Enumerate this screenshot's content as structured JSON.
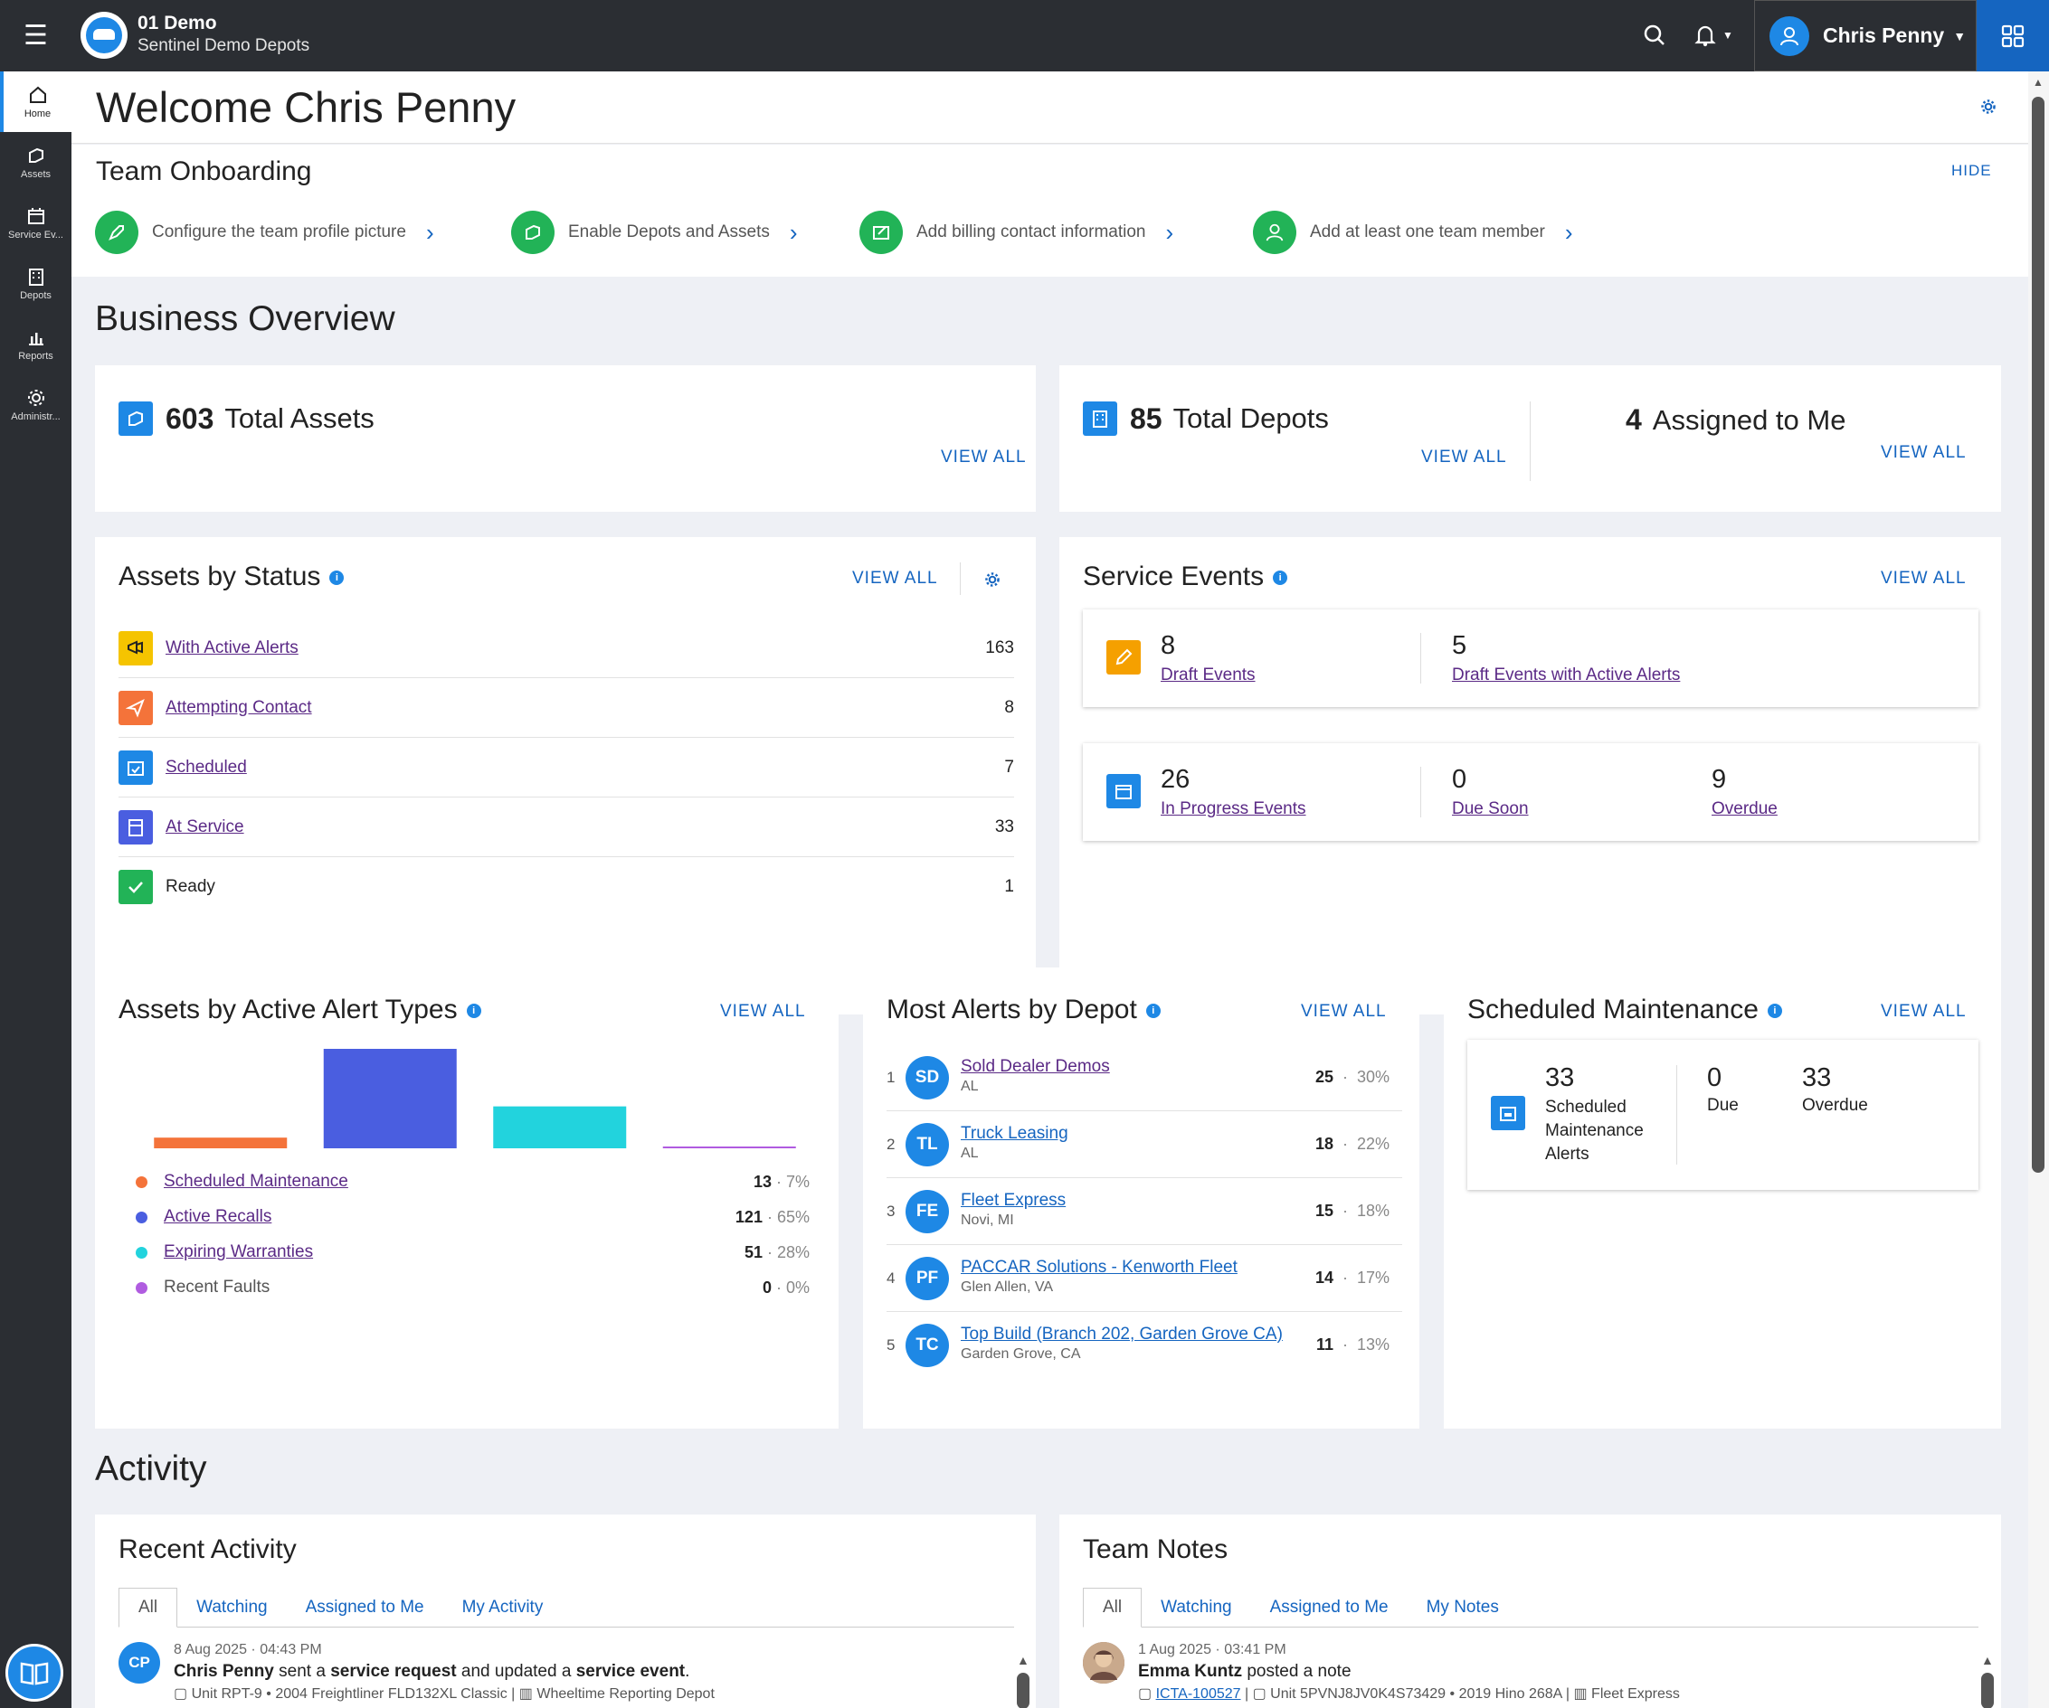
{
  "header": {
    "org_name": "01 Demo",
    "org_sub": "Sentinel Demo Depots",
    "user_name": "Chris Penny"
  },
  "sidebar": {
    "items": [
      {
        "label": "Home",
        "icon": "home-icon",
        "active": true
      },
      {
        "label": "Assets",
        "icon": "asset-icon"
      },
      {
        "label": "Service Ev...",
        "icon": "calendar-icon"
      },
      {
        "label": "Depots",
        "icon": "building-icon"
      },
      {
        "label": "Reports",
        "icon": "bar-chart-icon"
      },
      {
        "label": "Administr...",
        "icon": "gear-icon"
      }
    ]
  },
  "welcome": {
    "title": "Welcome Chris Penny"
  },
  "onboarding": {
    "title": "Team Onboarding",
    "hide_label": "HIDE",
    "steps": [
      {
        "label": "Configure the team profile picture"
      },
      {
        "label": "Enable Depots and Assets"
      },
      {
        "label": "Add billing contact information"
      },
      {
        "label": "Add at least one team member"
      }
    ]
  },
  "business_overview": {
    "title": "Business Overview"
  },
  "view_all": "VIEW ALL",
  "total_assets": {
    "count": "603",
    "label": "Total Assets"
  },
  "total_depots": {
    "count": "85",
    "label": "Total Depots"
  },
  "assigned": {
    "count": "4",
    "label": "Assigned to Me"
  },
  "assets_by_status": {
    "title": "Assets by Status",
    "rows": [
      {
        "label": "With Active Alerts",
        "count": "163",
        "color": "#f5c400"
      },
      {
        "label": "Attempting Contact",
        "count": "8",
        "color": "#f4733a"
      },
      {
        "label": "Scheduled",
        "count": "7",
        "color": "#1e88e5"
      },
      {
        "label": "At Service",
        "count": "33",
        "color": "#4a5ee0"
      },
      {
        "label": "Ready",
        "count": "1",
        "color": "#22b357"
      }
    ]
  },
  "service_events": {
    "title": "Service Events",
    "draft": {
      "count": "8",
      "label": "Draft Events"
    },
    "draft_alerts": {
      "count": "5",
      "label": "Draft Events with Active Alerts"
    },
    "in_progress": {
      "count": "26",
      "label": "In Progress Events"
    },
    "due_soon": {
      "count": "0",
      "label": "Due Soon"
    },
    "overdue": {
      "count": "9",
      "label": "Overdue"
    }
  },
  "alert_types": {
    "title": "Assets by Active Alert Types",
    "legend": [
      {
        "label": "Scheduled Maintenance",
        "count": "13",
        "pct": "7%",
        "color": "#f4733a"
      },
      {
        "label": "Active Recalls",
        "count": "121",
        "pct": "65%",
        "color": "#4a5ee0"
      },
      {
        "label": "Expiring Warranties",
        "count": "51",
        "pct": "28%",
        "color": "#22d3dd"
      },
      {
        "label": "Recent Faults",
        "count": "0",
        "pct": "0%",
        "color": "#b05ce0"
      }
    ]
  },
  "chart_data": {
    "type": "bar",
    "categories": [
      "Scheduled Maintenance",
      "Active Recalls",
      "Expiring Warranties",
      "Recent Faults"
    ],
    "values": [
      13,
      121,
      51,
      0
    ]
  },
  "depots": {
    "title": "Most Alerts by Depot",
    "rows": [
      {
        "rank": "1",
        "initials": "SD",
        "name": "Sold Dealer Demos",
        "loc": "AL",
        "count": "25",
        "pct": "30%",
        "visited": true
      },
      {
        "rank": "2",
        "initials": "TL",
        "name": "Truck Leasing",
        "loc": "AL",
        "count": "18",
        "pct": "22%",
        "visited": false
      },
      {
        "rank": "3",
        "initials": "FE",
        "name": "Fleet Express",
        "loc": "Novi, MI",
        "count": "15",
        "pct": "18%",
        "visited": false
      },
      {
        "rank": "4",
        "initials": "PF",
        "name": "PACCAR Solutions - Kenworth Fleet",
        "loc": "Glen Allen, VA",
        "count": "14",
        "pct": "17%",
        "visited": false
      },
      {
        "rank": "5",
        "initials": "TC",
        "name": "Top Build (Branch 202, Garden Grove CA)",
        "loc": "Garden Grove, CA",
        "count": "11",
        "pct": "13%",
        "visited": false
      }
    ]
  },
  "sched_maint": {
    "title": "Scheduled Maintenance",
    "alerts_count": "33",
    "alerts_l1": "Scheduled",
    "alerts_l2": "Maintenance",
    "alerts_l3": "Alerts",
    "due_count": "0",
    "due_label": "Due",
    "overdue_count": "33",
    "overdue_label": "Overdue"
  },
  "activity": {
    "title": "Activity"
  },
  "recent": {
    "title": "Recent Activity",
    "tabs": [
      "All",
      "Watching",
      "Assigned to Me",
      "My Activity"
    ],
    "item": {
      "initials": "CP",
      "meta": "8 Aug 2025 · 04:43 PM",
      "who": "Chris Penny",
      "t1": " sent a ",
      "b1": "service request",
      "t2": " and updated a ",
      "b2": "service event",
      "t3": ".",
      "unit": "Unit RPT-9",
      "vehicle": "2004 Freightliner FLD132XL Classic",
      "depot": "Wheeltime Reporting Depot"
    }
  },
  "notes": {
    "title": "Team Notes",
    "tabs": [
      "All",
      "Watching",
      "Assigned to Me",
      "My Notes"
    ],
    "item": {
      "meta": "1 Aug 2025 · 03:41 PM",
      "who": "Emma Kuntz",
      "action": " posted a note",
      "event": "ICTA-100527",
      "unit": "Unit 5PVNJ8JV0K4S73429",
      "vehicle": "2019 Hino 268A",
      "depot": "Fleet Express"
    }
  }
}
